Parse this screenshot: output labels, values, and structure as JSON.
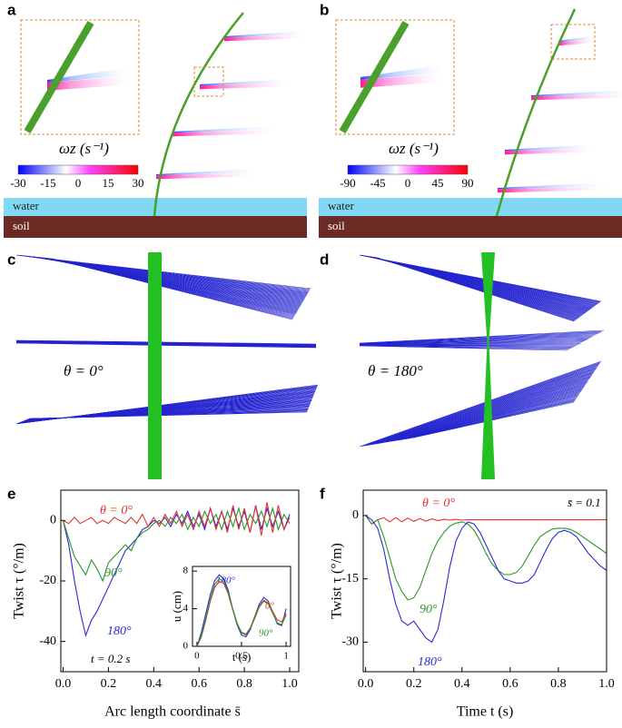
{
  "panels": {
    "a": {
      "label": "a",
      "colorbar_label": "ωz (s⁻¹)",
      "colorbar_ticks": [
        -30,
        -15,
        0,
        15,
        30
      ],
      "water": "water",
      "soil": "soil"
    },
    "b": {
      "label": "b",
      "colorbar_label": "ωz (s⁻¹)",
      "colorbar_ticks": [
        -90,
        -45,
        0,
        45,
        90
      ],
      "water": "water",
      "soil": "soil"
    },
    "c": {
      "label": "c",
      "annotation": "θ = 0°"
    },
    "d": {
      "label": "d",
      "annotation": "θ = 180°"
    },
    "e": {
      "label": "e"
    },
    "f": {
      "label": "f"
    }
  },
  "chart_data": [
    {
      "type": "line",
      "xlabel": "Arc length coordinate s̄",
      "ylabel": "Twist τ (°/m)",
      "xlim": [
        -0.01,
        1.04
      ],
      "ylim": [
        -50,
        10
      ],
      "xticks": [
        {
          "value": 0,
          "label": "0.0"
        },
        {
          "value": 0.2,
          "label": "0.2"
        },
        {
          "value": 0.4,
          "label": "0.4"
        },
        {
          "value": 0.6,
          "label": "0.6"
        },
        {
          "value": 0.8,
          "label": "0.8"
        },
        {
          "value": 1,
          "label": "1.0"
        }
      ],
      "yticks": [
        -40,
        -20,
        0
      ],
      "annotations": [
        "t = 0.2 s"
      ],
      "x": [
        0,
        0.025,
        0.05,
        0.075,
        0.1,
        0.125,
        0.15,
        0.175,
        0.2,
        0.225,
        0.25,
        0.275,
        0.3,
        0.325,
        0.35,
        0.375,
        0.4,
        0.425,
        0.45,
        0.475,
        0.5,
        0.525,
        0.55,
        0.575,
        0.6,
        0.625,
        0.65,
        0.675,
        0.7,
        0.725,
        0.75,
        0.775,
        0.8,
        0.825,
        0.85,
        0.875,
        0.9,
        0.925,
        0.95,
        0.975,
        1
      ],
      "series": [
        {
          "name": "180°",
          "color": "#2a2ad8",
          "values": [
            0,
            -8,
            -20,
            -30,
            -38,
            -33,
            -30,
            -26,
            -22,
            -18,
            -14,
            -10,
            -8,
            -6,
            -3,
            -2,
            0,
            -1,
            1,
            -2,
            2,
            -1,
            3,
            -2,
            2,
            -3,
            4,
            -2,
            3,
            -3,
            4,
            -2,
            3,
            -4,
            5,
            -3,
            4,
            -2,
            3,
            -3,
            2
          ]
        },
        {
          "name": "90°",
          "color": "#2a962a",
          "values": [
            0,
            -6,
            -12,
            -15,
            -18,
            -13,
            -16,
            -20,
            -14,
            -12,
            -10,
            -8,
            -10,
            -6,
            -4,
            -3,
            -1,
            0,
            -2,
            1,
            -1,
            2,
            -3,
            1,
            -2,
            3,
            -1,
            2,
            -3,
            3,
            -2,
            4,
            -3,
            2,
            -1,
            3,
            -2,
            4,
            -3,
            2,
            -1
          ]
        },
        {
          "name": "θ = 0°",
          "color": "#e5302a",
          "values": [
            0,
            -1,
            1,
            -1,
            0,
            1,
            -1,
            0,
            -1,
            1,
            0,
            -1,
            1,
            -1,
            2,
            -2,
            1,
            -2,
            2,
            -1,
            3,
            -2,
            2,
            -3,
            3,
            -2,
            4,
            -3,
            3,
            -4,
            5,
            -3,
            4,
            -4,
            5,
            -5,
            6,
            -4,
            5,
            -3,
            1
          ]
        }
      ]
    },
    {
      "type": "line",
      "xlabel": "t (s)",
      "ylabel": "u (cm)",
      "xlim": [
        -0.05,
        1.05
      ],
      "ylim": [
        0,
        8.5
      ],
      "xticks": [
        0,
        0.5,
        1
      ],
      "yticks": [
        0,
        4,
        8
      ],
      "x": [
        0,
        0.05,
        0.1,
        0.15,
        0.2,
        0.25,
        0.3,
        0.35,
        0.4,
        0.45,
        0.5,
        0.55,
        0.6,
        0.65,
        0.7,
        0.75,
        0.8,
        0.85,
        0.9,
        0.95,
        1
      ],
      "series": [
        {
          "name": "180°",
          "color": "#2a2ad8",
          "values": [
            0,
            1.5,
            3.5,
            5.5,
            7,
            7.6,
            7.2,
            6,
            4,
            2.3,
            1.2,
            1,
            1.8,
            3.2,
            4.5,
            5.2,
            4.8,
            3.6,
            2.4,
            2.2,
            4
          ]
        },
        {
          "name": "0°",
          "color": "#e5302a",
          "values": [
            0,
            1,
            2.8,
            4.8,
            6.3,
            6.9,
            6.7,
            5.6,
            3.9,
            2.4,
            1.5,
            1.3,
            2,
            3.2,
            4.3,
            4.9,
            4.6,
            3.7,
            2.8,
            2.6,
            3.5
          ]
        },
        {
          "name": "90°",
          "color": "#2a962a",
          "values": [
            0,
            1.2,
            3,
            5,
            6.6,
            7.2,
            6.9,
            5.8,
            4,
            2.5,
            1.4,
            1.2,
            1.9,
            3,
            4.2,
            4.8,
            4.5,
            3.5,
            2.5,
            2.3,
            3.3
          ]
        }
      ]
    },
    {
      "type": "line",
      "xlabel": "Time t (s)",
      "ylabel": "Twist τ (°/m)",
      "xlim": [
        -0.01,
        1
      ],
      "ylim": [
        -37,
        6
      ],
      "xticks": [
        {
          "value": 0,
          "label": "0.0"
        },
        {
          "value": 0.2,
          "label": "0.2"
        },
        {
          "value": 0.4,
          "label": "0.4"
        },
        {
          "value": 0.6,
          "label": "0.6"
        },
        {
          "value": 0.8,
          "label": "0.8"
        },
        {
          "value": 1,
          "label": "1.0"
        }
      ],
      "yticks": [
        -30,
        -15,
        0
      ],
      "annotations": [
        "s̄ = 0.1"
      ],
      "x": [
        0,
        0.025,
        0.05,
        0.075,
        0.1,
        0.125,
        0.15,
        0.175,
        0.2,
        0.225,
        0.25,
        0.275,
        0.3,
        0.325,
        0.35,
        0.375,
        0.4,
        0.425,
        0.45,
        0.475,
        0.5,
        0.525,
        0.55,
        0.575,
        0.6,
        0.625,
        0.65,
        0.675,
        0.7,
        0.725,
        0.75,
        0.775,
        0.8,
        0.825,
        0.85,
        0.875,
        0.9,
        0.925,
        0.95,
        0.975,
        1
      ],
      "series": [
        {
          "name": "θ = 0°",
          "color": "#e5302a",
          "values": [
            0,
            -2,
            -1,
            -0.5,
            -1.5,
            -0.5,
            -1.5,
            -0.6,
            -1.4,
            -0.7,
            -1.3,
            -0.8,
            -1.2,
            -0.9,
            -1.1,
            -0.9,
            -1.1,
            -1,
            -1,
            -1,
            -1,
            -1,
            -1,
            -1,
            -1,
            -1,
            -1,
            -1,
            -1,
            -1,
            -1,
            -1,
            -1,
            -1,
            -1,
            -1,
            -1,
            -1,
            -1,
            -1,
            -1
          ]
        },
        {
          "name": "90°",
          "color": "#2a962a",
          "values": [
            0,
            -2,
            -1,
            -5,
            -10,
            -15,
            -18,
            -20,
            -19.5,
            -17,
            -13,
            -9,
            -6,
            -4,
            -2.5,
            -1.8,
            -1.5,
            -2,
            -3.5,
            -6,
            -9,
            -11.5,
            -13,
            -14,
            -14,
            -13.5,
            -12,
            -9.5,
            -7,
            -5,
            -4,
            -3.2,
            -3,
            -3,
            -3.3,
            -4,
            -5,
            -6,
            -7,
            -8,
            -9
          ]
        },
        {
          "name": "180°",
          "color": "#2a2ad8",
          "values": [
            0,
            -1,
            -3,
            -8,
            -15,
            -21,
            -25,
            -26,
            -25,
            -27,
            -29,
            -30,
            -27,
            -20,
            -12,
            -6,
            -3,
            -1.5,
            -2,
            -4,
            -7,
            -10,
            -13,
            -15,
            -15.5,
            -16,
            -16,
            -15.5,
            -14,
            -11,
            -8,
            -5.5,
            -4,
            -3.5,
            -4,
            -5,
            -7,
            -9,
            -10.5,
            -12,
            -13
          ]
        }
      ]
    }
  ]
}
